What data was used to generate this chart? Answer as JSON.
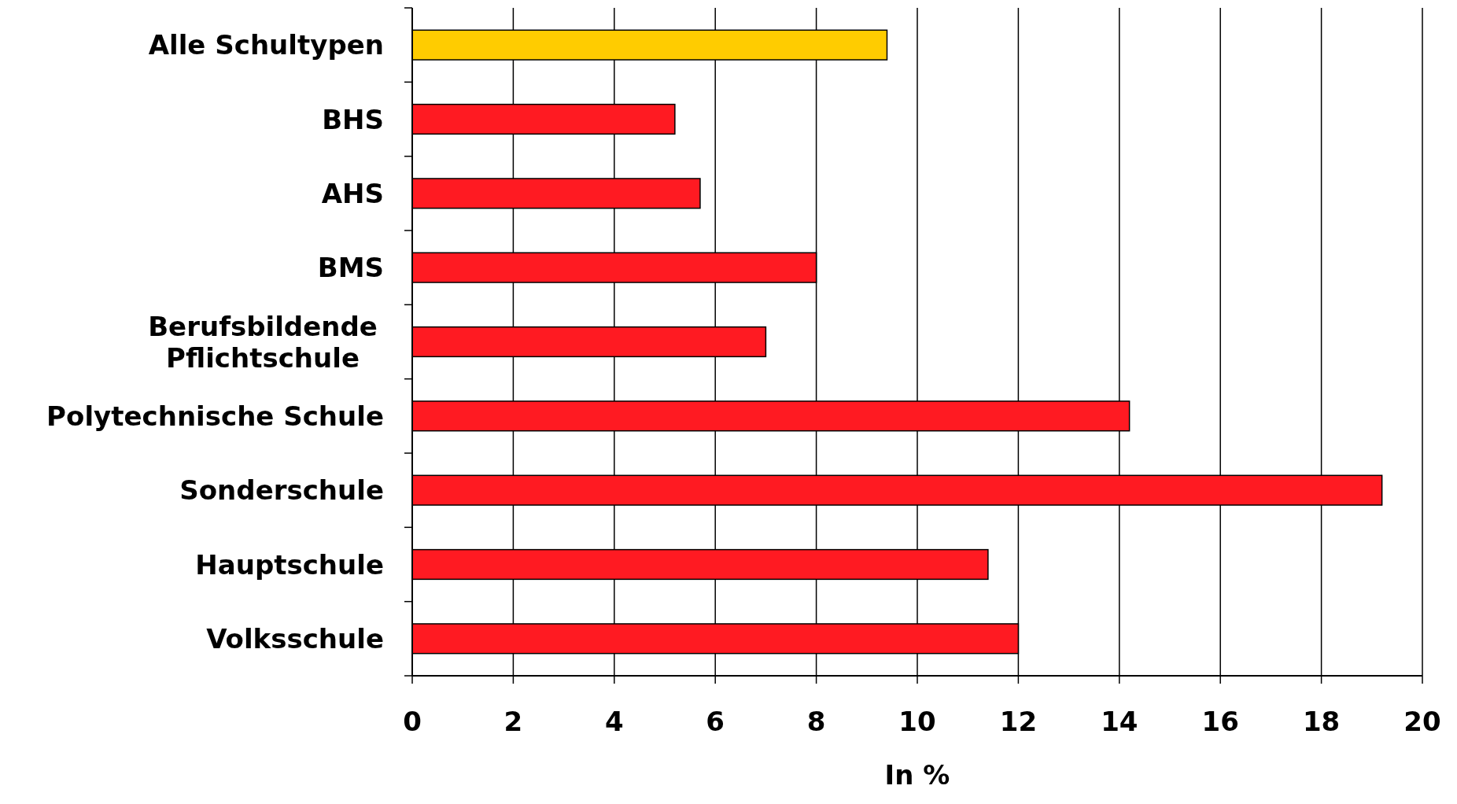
{
  "chart_data": {
    "type": "bar",
    "orientation": "horizontal",
    "xlabel": "In %",
    "categories": [
      "Alle Schultypen",
      "BHS",
      "AHS",
      "BMS",
      "Berufsbildende\nPflichtschule",
      "Polytechnische Schule",
      "Sonderschule",
      "Hauptschule",
      "Volksschule"
    ],
    "values": [
      9.4,
      5.2,
      5.7,
      8.0,
      7.0,
      14.2,
      19.2,
      11.4,
      12.0
    ],
    "colors": [
      "#ffcc00",
      "#ff1a22",
      "#ff1a22",
      "#ff1a22",
      "#ff1a22",
      "#ff1a22",
      "#ff1a22",
      "#ff1a22",
      "#ff1a22"
    ],
    "xlim": [
      0,
      20
    ],
    "xticks": [
      0,
      2,
      4,
      6,
      8,
      10,
      12,
      14,
      16,
      18,
      20
    ],
    "grid": "x"
  }
}
